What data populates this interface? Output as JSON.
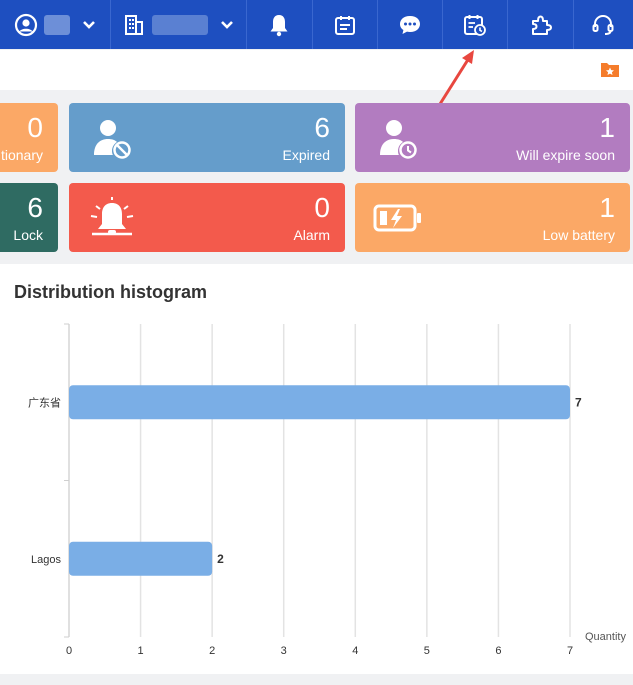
{
  "topbar": {
    "user_name": "",
    "org_name": "",
    "icons": [
      "user-circle-icon",
      "chevron-down-icon",
      "building-icon",
      "chevron-down-icon",
      "bell-icon",
      "calendar-icon",
      "chat-bubble-icon",
      "calendar-clock-icon",
      "puzzle-icon",
      "headset-icon"
    ]
  },
  "subbar": {
    "icon": "star-folder-icon"
  },
  "cards": [
    {
      "id": "stationary",
      "value": "0",
      "label": "tionary",
      "color": "#fba866",
      "icon": ""
    },
    {
      "id": "expired",
      "value": "6",
      "label": "Expired",
      "color": "#659dcb",
      "icon": "user-ban-icon"
    },
    {
      "id": "will-expire",
      "value": "1",
      "label": "Will expire soon",
      "color": "#b27cc0",
      "icon": "user-clock-icon"
    },
    {
      "id": "lock",
      "value": "6",
      "label": "Lock",
      "color": "#2f6b62",
      "icon": ""
    },
    {
      "id": "alarm",
      "value": "0",
      "label": "Alarm",
      "color": "#f35a4c",
      "icon": "alarm-bell-icon"
    },
    {
      "id": "low-battery",
      "value": "1",
      "label": "Low battery",
      "color": "#fba866",
      "icon": "battery-charging-icon"
    }
  ],
  "chart_data": {
    "type": "bar",
    "orientation": "horizontal",
    "title": "Distribution histogram",
    "categories": [
      "广东省",
      "Lagos"
    ],
    "values": [
      7,
      2
    ],
    "xlabel": "Quantity",
    "xlim": [
      0,
      7
    ],
    "x_ticks": [
      "0",
      "1",
      "2",
      "3",
      "4",
      "5",
      "6",
      "7"
    ],
    "grid": true,
    "bar_color": "#7aaee6"
  }
}
